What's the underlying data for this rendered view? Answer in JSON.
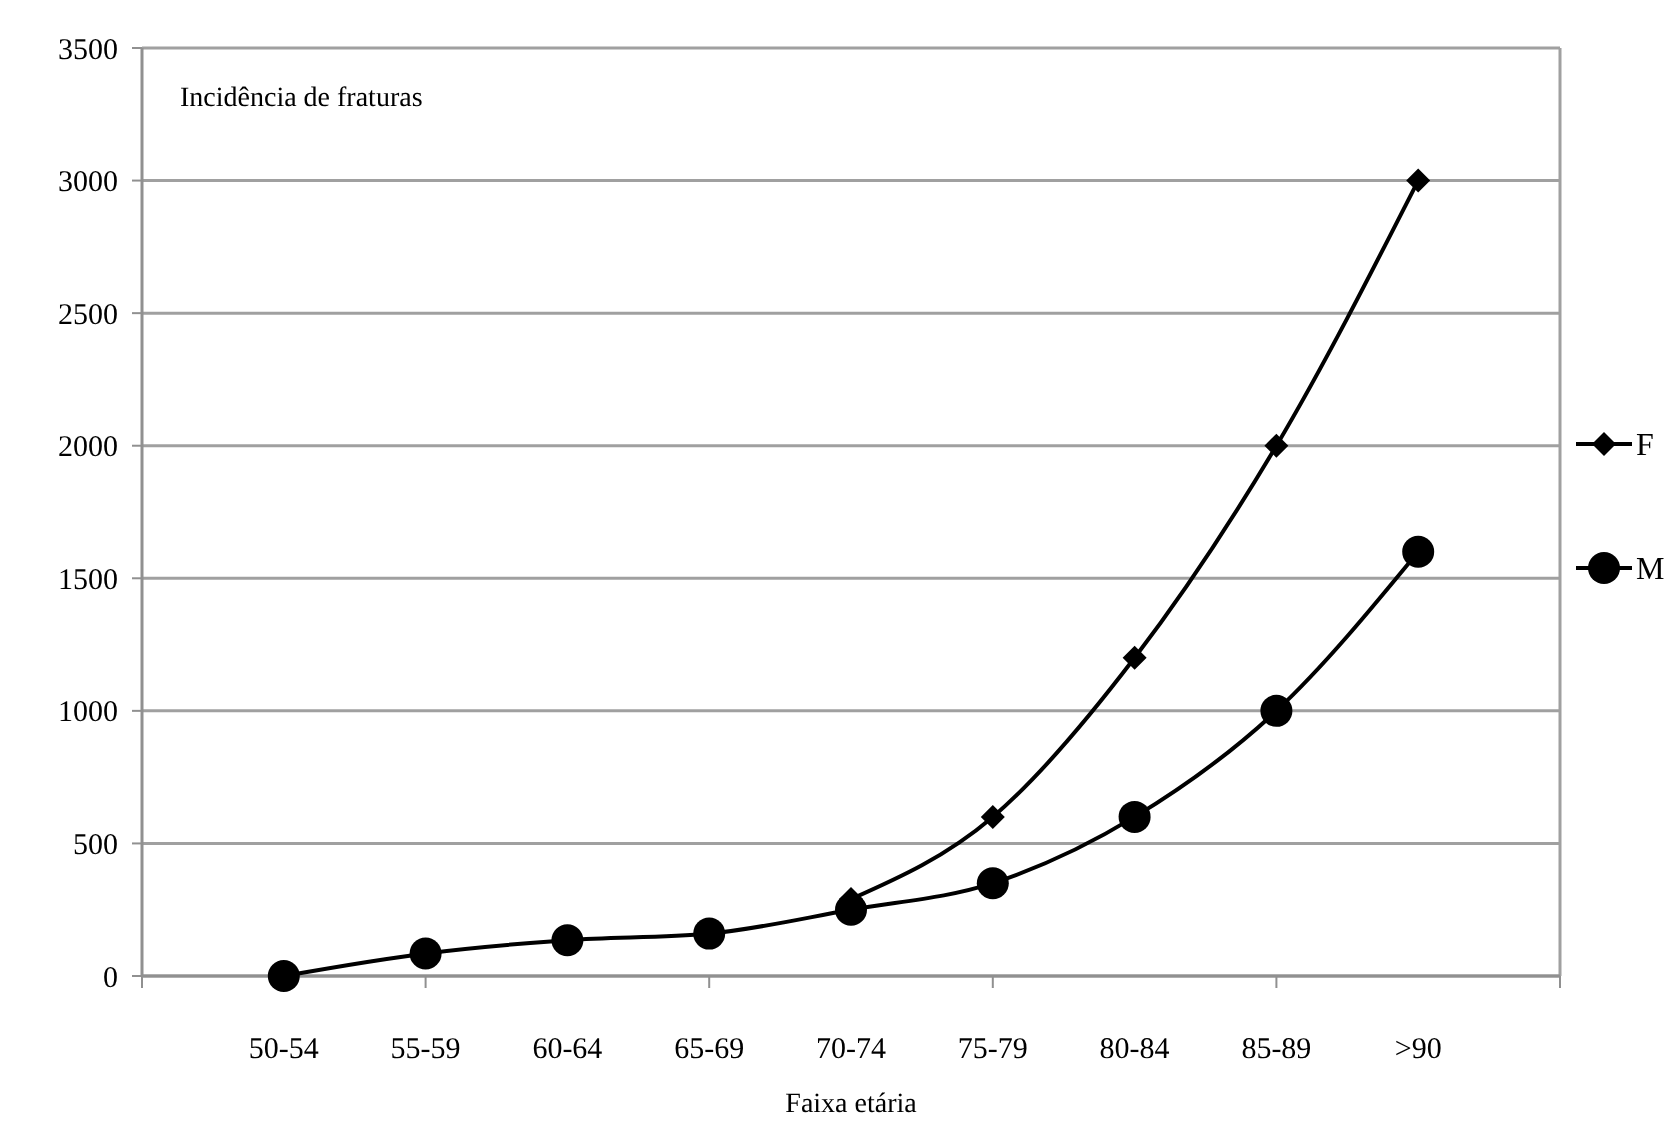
{
  "chart_data": {
    "type": "line",
    "title": "Incidência de fraturas",
    "xlabel": "Faixa etária",
    "categories": [
      "50-54",
      "55-59",
      "60-64",
      "65-69",
      "70-74",
      "75-79",
      "80-84",
      "85-89",
      ">90"
    ],
    "series": [
      {
        "name": "F",
        "color": "#000000",
        "marker": "diamond",
        "values": [
          null,
          null,
          null,
          null,
          290,
          600,
          1200,
          2000,
          3000
        ]
      },
      {
        "name": "M",
        "color": "#000000",
        "marker": "circle",
        "values": [
          0,
          85,
          135,
          160,
          250,
          350,
          600,
          1000,
          1600
        ]
      }
    ],
    "ylim": [
      0,
      3500
    ],
    "yticks": [
      0,
      500,
      1000,
      1500,
      2000,
      2500,
      3000,
      3500
    ],
    "grid": "y",
    "legend": "right",
    "line_style": "solid"
  }
}
